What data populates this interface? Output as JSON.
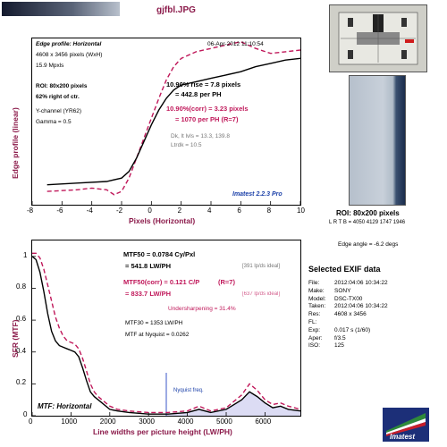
{
  "header": {
    "filename": "gjfbl.JPG"
  },
  "edge_panel": {
    "heading": "Edge profile: Horizontal",
    "date": "06-Apr-2012 11:10:54",
    "image_size": "4608 x 3456 pixels (WxH)",
    "mpxls": "15.9 Mpxls",
    "roi": "ROI: 80x200 pixels",
    "roi_pos": "62% right of ctr.",
    "channel": "Y-channel (YR62)",
    "gamma": "Gamma = 0.5",
    "rise": "10.90% rise = 7.8 pixels",
    "rise_ph": "= 442.8 per PH",
    "rise_corr": "10.90%(corr) = 3.23 pixels",
    "rise_corr_ph": "= 1070 per PH (R=7)",
    "dk_lt": "Dk, lt lvls = 13.3, 139.8",
    "ltrdk": "Ltrdk = 10.5",
    "brand": "Imatest 2.2.3 Pro"
  },
  "roi_panel": {
    "label": "ROI: 80x200 pixels",
    "lrtb": "L R  T B = 4050 4129  1747 1946",
    "edge_angle": "Edge angle = -6.2 degs"
  },
  "mtf_panel": {
    "mtf50": "MTF50 = 0.0784 Cy/Pxl",
    "mtf50_lw": "= 541.8 LW/PH",
    "mtf50_ideal": "[391 lp/ds ideal]",
    "mtf50c": "MTF50(corr) = 0.121 C/P",
    "mtf50c_r": "(R=7)",
    "mtf50c_lw": "= 833.7 LW/PH",
    "mtf50c_ideal": "[637 lp/ds ideal]",
    "undersharp": "Undersharpening = 31.4%",
    "mtf30": "MTF30 = 1353 LW/PH",
    "nyquist_mtf": "MTF at Nyquist = 0.0262",
    "nyquist_label": "Nyquist freq.",
    "heading": "MTF: Horizontal"
  },
  "exif": {
    "title": "Selected EXIF data",
    "rows": [
      {
        "k": "File:",
        "v": "2012:04:06 10:34:22"
      },
      {
        "k": "Make:",
        "v": "SONY"
      },
      {
        "k": "Model:",
        "v": "DSC-TX00"
      },
      {
        "k": "Taken:",
        "v": "2012:04:06 10:34:22"
      },
      {
        "k": "Res:",
        "v": "4608 x 3456"
      },
      {
        "k": "FL:",
        "v": ""
      },
      {
        "k": "Exp:",
        "v": "0.017 s  (1/60)"
      },
      {
        "k": "Aper:",
        "v": "f/3.5"
      },
      {
        "k": "ISO:",
        "v": "125"
      }
    ]
  },
  "logo_text": "Imatest",
  "colors": {
    "measured": "#000000",
    "corrected": "#c0185a",
    "nyquist": "#3a55c8",
    "accent": "#8b1a4a"
  },
  "chart_data": [
    {
      "type": "line",
      "xlabel": "Pixels (Horizontal)",
      "ylabel": "Edge profile (linear)",
      "xlim": [
        -8,
        10
      ],
      "ylim": [
        0,
        1
      ],
      "xticks": [
        -8,
        -6,
        -4,
        -2,
        0,
        2,
        4,
        6,
        8,
        10
      ],
      "series": [
        {
          "x": [
            -7,
            -5,
            -3,
            -2,
            -1.5,
            -1,
            -0.5,
            0,
            0.5,
            1,
            1.5,
            2,
            3,
            4,
            5,
            6,
            7,
            8,
            9,
            10
          ],
          "y": [
            0.12,
            0.13,
            0.14,
            0.16,
            0.2,
            0.28,
            0.38,
            0.48,
            0.57,
            0.64,
            0.69,
            0.72,
            0.74,
            0.76,
            0.78,
            0.8,
            0.83,
            0.85,
            0.87,
            0.88
          ]
        },
        {
          "x": [
            -7,
            -5,
            -4,
            -3,
            -2.5,
            -2,
            -1.5,
            -1,
            -0.5,
            0,
            0.5,
            1,
            1.5,
            2,
            3,
            4,
            5,
            6,
            7,
            8,
            9,
            10
          ],
          "y": [
            0.08,
            0.09,
            0.1,
            0.09,
            0.06,
            0.08,
            0.16,
            0.28,
            0.4,
            0.52,
            0.64,
            0.75,
            0.83,
            0.88,
            0.92,
            0.94,
            0.96,
            0.98,
            0.94,
            0.91,
            0.92,
            0.93
          ]
        }
      ]
    },
    {
      "type": "line",
      "xlabel": "Line widths per picture height (LW/PH)",
      "ylabel": "SFR (MTF)",
      "xlim": [
        0,
        6912
      ],
      "ylim": [
        0,
        1.1
      ],
      "xticks": [
        0,
        1000,
        2000,
        3000,
        4000,
        5000,
        6000
      ],
      "yticks": [
        0,
        0.2,
        0.4,
        0.6,
        0.8,
        1
      ],
      "nyquist": 3456,
      "series": [
        {
          "x": [
            0,
            100,
            200,
            300,
            400,
            500,
            600,
            700,
            800,
            900,
            1000,
            1100,
            1200,
            1300,
            1400,
            1500,
            1600,
            1700,
            1800,
            2000,
            2200,
            2500,
            3000,
            3500,
            4000,
            4300,
            4600,
            5000,
            5400,
            5600,
            5800,
            6000,
            6200,
            6400,
            6600,
            6912
          ],
          "y": [
            1.0,
            0.98,
            0.9,
            0.78,
            0.64,
            0.53,
            0.47,
            0.44,
            0.43,
            0.42,
            0.41,
            0.4,
            0.37,
            0.3,
            0.22,
            0.15,
            0.12,
            0.1,
            0.08,
            0.04,
            0.03,
            0.02,
            0.01,
            0.01,
            0.02,
            0.04,
            0.02,
            0.04,
            0.1,
            0.15,
            0.12,
            0.08,
            0.05,
            0.06,
            0.04,
            0.03
          ]
        },
        {
          "x": [
            0,
            100,
            200,
            300,
            400,
            500,
            600,
            700,
            800,
            900,
            1000,
            1100,
            1200,
            1300,
            1400,
            1500,
            1600,
            1700,
            1800,
            2000,
            2200,
            2500,
            3000,
            3500,
            4000,
            4300,
            4600,
            5000,
            5400,
            5600,
            5800,
            6000,
            6200,
            6400,
            6600,
            6912
          ],
          "y": [
            1.02,
            1.02,
            0.99,
            0.92,
            0.82,
            0.72,
            0.62,
            0.55,
            0.5,
            0.47,
            0.46,
            0.45,
            0.42,
            0.36,
            0.28,
            0.2,
            0.15,
            0.12,
            0.1,
            0.06,
            0.04,
            0.03,
            0.02,
            0.02,
            0.03,
            0.06,
            0.03,
            0.05,
            0.13,
            0.2,
            0.16,
            0.1,
            0.07,
            0.08,
            0.06,
            0.04
          ]
        }
      ]
    }
  ]
}
